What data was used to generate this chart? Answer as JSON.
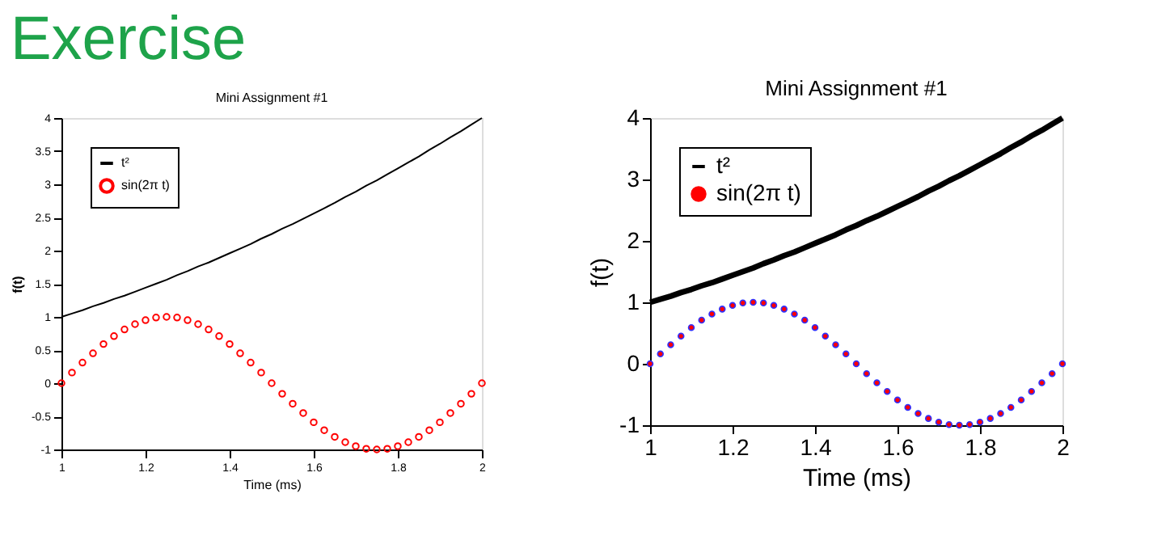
{
  "chart_data": [
    {
      "type": "line",
      "title": "Mini Assignment #1",
      "xlabel": "Time (ms)",
      "ylabel": "f(t)",
      "annotations": [
        "Exercise"
      ],
      "x": [
        1.0,
        1.025,
        1.05,
        1.075,
        1.1,
        1.125,
        1.15,
        1.175,
        1.2,
        1.225,
        1.25,
        1.275,
        1.3,
        1.325,
        1.35,
        1.375,
        1.4,
        1.425,
        1.45,
        1.475,
        1.5,
        1.525,
        1.55,
        1.575,
        1.6,
        1.625,
        1.65,
        1.675,
        1.7,
        1.725,
        1.75,
        1.775,
        1.8,
        1.825,
        1.85,
        1.875,
        1.9,
        1.925,
        1.95,
        1.975,
        2.0
      ],
      "series": [
        {
          "name": "t²",
          "color": "#000000",
          "type": "line",
          "marker": "none",
          "values": [
            1.0,
            1.05,
            1.1,
            1.16,
            1.21,
            1.27,
            1.32,
            1.38,
            1.44,
            1.5,
            1.56,
            1.63,
            1.69,
            1.76,
            1.82,
            1.89,
            1.96,
            2.03,
            2.1,
            2.18,
            2.25,
            2.33,
            2.4,
            2.48,
            2.56,
            2.64,
            2.72,
            2.81,
            2.89,
            2.98,
            3.06,
            3.15,
            3.24,
            3.33,
            3.42,
            3.52,
            3.61,
            3.71,
            3.8,
            3.9,
            4.0
          ]
        },
        {
          "name": "sin(2π t)",
          "color": "#ff0000",
          "type": "scatter",
          "marker": "circle",
          "values": [
            0,
            0.16,
            0.31,
            0.45,
            0.59,
            0.71,
            0.81,
            0.89,
            0.95,
            0.99,
            1,
            0.99,
            0.95,
            0.89,
            0.81,
            0.71,
            0.59,
            0.45,
            0.31,
            0.16,
            0,
            -0.16,
            -0.31,
            -0.45,
            -0.59,
            -0.71,
            -0.81,
            -0.89,
            -0.95,
            -0.99,
            -1,
            -0.99,
            -0.95,
            -0.89,
            -0.81,
            -0.71,
            -0.59,
            -0.45,
            -0.31,
            -0.16,
            0
          ]
        }
      ],
      "xlim": [
        1,
        2
      ],
      "xticks": [
        1,
        1.2,
        1.4,
        1.6,
        1.8,
        2
      ],
      "ylim": [
        -1,
        4
      ],
      "yticks": [
        -1,
        -0.5,
        0,
        0.5,
        1,
        1.5,
        2,
        2.5,
        3,
        3.5,
        4
      ],
      "legend": "top left",
      "grid": false
    },
    {
      "type": "line",
      "title": "Mini Assignment #1",
      "xlabel": "Time (ms)",
      "ylabel": "f(t)",
      "x": [
        1.0,
        1.025,
        1.05,
        1.075,
        1.1,
        1.125,
        1.15,
        1.175,
        1.2,
        1.225,
        1.25,
        1.275,
        1.3,
        1.325,
        1.35,
        1.375,
        1.4,
        1.425,
        1.45,
        1.475,
        1.5,
        1.525,
        1.55,
        1.575,
        1.6,
        1.625,
        1.65,
        1.675,
        1.7,
        1.725,
        1.75,
        1.775,
        1.8,
        1.825,
        1.85,
        1.875,
        1.9,
        1.925,
        1.95,
        1.975,
        2.0
      ],
      "series": [
        {
          "name": "t²",
          "color": "#000000",
          "type": "line",
          "marker": "none",
          "values": [
            1.0,
            1.05,
            1.1,
            1.16,
            1.21,
            1.27,
            1.32,
            1.38,
            1.44,
            1.5,
            1.56,
            1.63,
            1.69,
            1.76,
            1.82,
            1.89,
            1.96,
            2.03,
            2.1,
            2.18,
            2.25,
            2.33,
            2.4,
            2.48,
            2.56,
            2.64,
            2.72,
            2.81,
            2.89,
            2.98,
            3.06,
            3.15,
            3.24,
            3.33,
            3.42,
            3.52,
            3.61,
            3.71,
            3.8,
            3.9,
            4.0
          ]
        },
        {
          "name": "sin(2π t)",
          "color": "#ff0000",
          "type": "scatter",
          "marker": "circle",
          "values": [
            0,
            0.16,
            0.31,
            0.45,
            0.59,
            0.71,
            0.81,
            0.89,
            0.95,
            0.99,
            1,
            0.99,
            0.95,
            0.89,
            0.81,
            0.71,
            0.59,
            0.45,
            0.31,
            0.16,
            0,
            -0.16,
            -0.31,
            -0.45,
            -0.59,
            -0.71,
            -0.81,
            -0.89,
            -0.95,
            -0.99,
            -1,
            -0.99,
            -0.95,
            -0.89,
            -0.81,
            -0.71,
            -0.59,
            -0.45,
            -0.31,
            -0.16,
            0
          ]
        }
      ],
      "xlim": [
        1,
        2
      ],
      "xticks": [
        1,
        1.2,
        1.4,
        1.6,
        1.8,
        2
      ],
      "ylim": [
        -1,
        4
      ],
      "yticks": [
        -1,
        0,
        1,
        2,
        3,
        4
      ],
      "legend": "top left",
      "grid": false
    }
  ]
}
